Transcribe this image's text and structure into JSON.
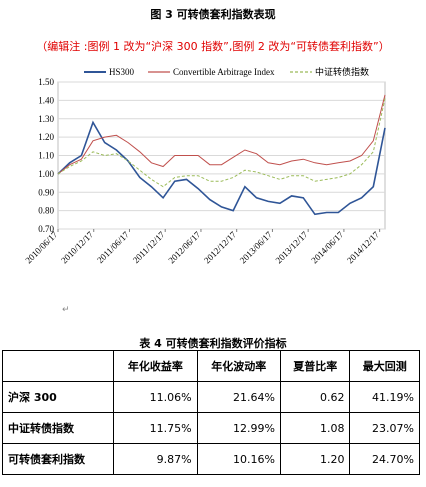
{
  "figure": {
    "title": "图 3 可转债套利指数表现",
    "editor_note": "（编辑注 :图例 1 改为“沪深 300 指数”,图例 2 改为“可转债套利指数”）"
  },
  "chart_data": {
    "type": "line",
    "legend": [
      "HS300",
      "Convertible Arbitrage Index",
      "中证转债指数"
    ],
    "legend_placement": "top",
    "ylim": [
      0.7,
      1.5
    ],
    "yticks": [
      "0.70",
      "0.80",
      "0.90",
      "1.00",
      "1.10",
      "1.20",
      "1.30",
      "1.40",
      "1.50"
    ],
    "xticks": [
      "2010/06/17",
      "2010/12/17",
      "2011/06/17",
      "2011/12/17",
      "2012/06/17",
      "2012/12/17",
      "2013/06/17",
      "2013/12/17",
      "2014/06/17",
      "2014/12/17"
    ],
    "grid": true,
    "colors": [
      "#2f5597",
      "#c0504d",
      "#9bbb59"
    ],
    "x": [
      "2010/06/17",
      "2010/08/17",
      "2010/10/17",
      "2010/12/17",
      "2011/02/17",
      "2011/04/17",
      "2011/06/17",
      "2011/08/17",
      "2011/10/17",
      "2011/12/17",
      "2012/02/17",
      "2012/04/17",
      "2012/06/17",
      "2012/08/17",
      "2012/10/17",
      "2012/12/17",
      "2013/02/17",
      "2013/04/17",
      "2013/06/17",
      "2013/08/17",
      "2013/10/17",
      "2013/12/17",
      "2014/02/17",
      "2014/04/17",
      "2014/06/17",
      "2014/08/17",
      "2014/10/17",
      "2014/12/17",
      "2014/12/31"
    ],
    "series": [
      {
        "name": "HS300",
        "values": [
          1.0,
          1.06,
          1.1,
          1.28,
          1.17,
          1.13,
          1.07,
          0.98,
          0.93,
          0.87,
          0.96,
          0.97,
          0.92,
          0.86,
          0.82,
          0.8,
          0.93,
          0.87,
          0.85,
          0.84,
          0.88,
          0.87,
          0.78,
          0.79,
          0.79,
          0.84,
          0.87,
          0.93,
          1.25
        ]
      },
      {
        "name": "Convertible Arbitrage Index",
        "values": [
          1.0,
          1.05,
          1.08,
          1.18,
          1.2,
          1.21,
          1.17,
          1.12,
          1.06,
          1.04,
          1.1,
          1.1,
          1.1,
          1.05,
          1.05,
          1.09,
          1.13,
          1.11,
          1.06,
          1.05,
          1.07,
          1.08,
          1.06,
          1.05,
          1.06,
          1.07,
          1.1,
          1.18,
          1.43
        ]
      },
      {
        "name": "中证转债指数",
        "values": [
          1.0,
          1.04,
          1.07,
          1.12,
          1.1,
          1.11,
          1.07,
          1.02,
          0.97,
          0.93,
          0.98,
          0.99,
          0.99,
          0.96,
          0.96,
          0.98,
          1.02,
          1.01,
          0.99,
          0.97,
          0.99,
          0.99,
          0.96,
          0.97,
          0.98,
          1.0,
          1.05,
          1.12,
          1.41
        ]
      }
    ]
  },
  "marks": {
    "enter": "↵"
  },
  "table": {
    "title": "表 4 可转债套利指数评价指标",
    "headers": [
      "",
      "年化收益率",
      "年化波动率",
      "夏普比率",
      "最大回测"
    ],
    "rows": [
      [
        "沪深 300",
        "11.06%",
        "21.64%",
        "0.62",
        "41.19%"
      ],
      [
        "中证转债指数",
        "11.75%",
        "12.99%",
        "1.08",
        "23.07%"
      ],
      [
        "可转债套利指数",
        "9.87%",
        "10.16%",
        "1.20",
        "24.70%"
      ]
    ]
  }
}
